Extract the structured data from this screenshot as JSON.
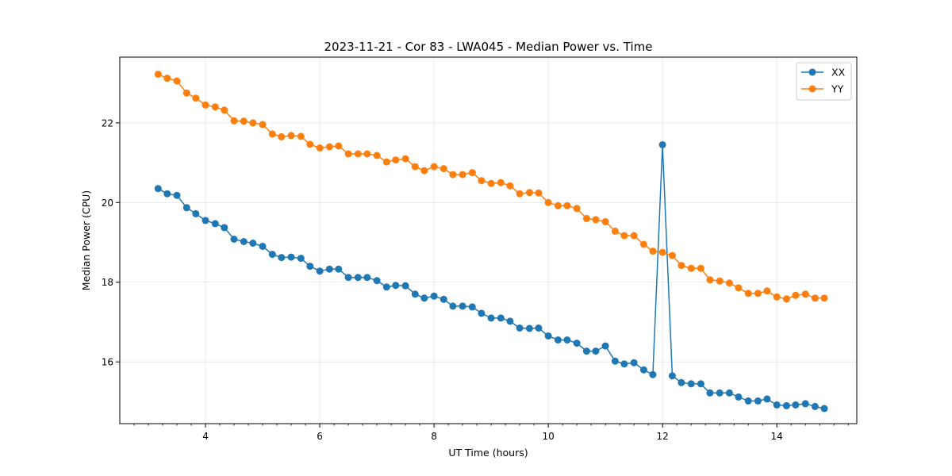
{
  "chart_data": {
    "type": "line",
    "title": "2023-11-21 - Cor 83 - LWA045 - Median Power vs. Time",
    "xlabel": "UT Time (hours)",
    "ylabel": "Median Power (CPU)",
    "xlim": [
      2.5,
      15.4
    ],
    "ylim": [
      14.45,
      23.65
    ],
    "xticks": [
      4,
      6,
      8,
      10,
      12,
      14
    ],
    "yticks": [
      16,
      18,
      20,
      22
    ],
    "grid": true,
    "legend_position": "top-right",
    "x": [
      3.17,
      3.33,
      3.5,
      3.67,
      3.83,
      4.0,
      4.17,
      4.33,
      4.5,
      4.67,
      4.83,
      5.0,
      5.17,
      5.33,
      5.5,
      5.67,
      5.83,
      6.0,
      6.17,
      6.33,
      6.5,
      6.67,
      6.83,
      7.0,
      7.17,
      7.33,
      7.5,
      7.67,
      7.83,
      8.0,
      8.17,
      8.33,
      8.5,
      8.67,
      8.83,
      9.0,
      9.17,
      9.33,
      9.5,
      9.67,
      9.83,
      10.0,
      10.17,
      10.33,
      10.5,
      10.67,
      10.83,
      11.0,
      11.17,
      11.33,
      11.5,
      11.67,
      11.83,
      12.0,
      12.17,
      12.33,
      12.5,
      12.67,
      12.83,
      13.0,
      13.17,
      13.33,
      13.5,
      13.67,
      13.83,
      14.0,
      14.17,
      14.33,
      14.5,
      14.67,
      14.83
    ],
    "series": [
      {
        "name": "XX",
        "color": "#1f77b4",
        "values": [
          20.35,
          20.22,
          20.18,
          19.87,
          19.72,
          19.55,
          19.47,
          19.37,
          19.08,
          19.02,
          18.98,
          18.9,
          18.7,
          18.62,
          18.63,
          18.6,
          18.4,
          18.28,
          18.33,
          18.33,
          18.12,
          18.12,
          18.12,
          18.04,
          17.88,
          17.92,
          17.91,
          17.7,
          17.6,
          17.65,
          17.57,
          17.4,
          17.4,
          17.38,
          17.22,
          17.1,
          17.1,
          17.02,
          16.85,
          16.84,
          16.85,
          16.65,
          16.55,
          16.55,
          16.47,
          16.27,
          16.27,
          16.4,
          16.02,
          15.95,
          15.98,
          15.8,
          15.68,
          21.45,
          15.65,
          15.48,
          15.45,
          15.45,
          15.22,
          15.22,
          15.22,
          15.12,
          15.02,
          15.02,
          15.07,
          14.92,
          14.9,
          14.92,
          14.95,
          14.88,
          14.83
        ]
      },
      {
        "name": "YY",
        "color": "#ff7f0e",
        "values": [
          23.22,
          23.12,
          23.05,
          22.75,
          22.62,
          22.45,
          22.4,
          22.32,
          22.05,
          22.04,
          22.0,
          21.96,
          21.72,
          21.65,
          21.68,
          21.66,
          21.46,
          21.37,
          21.4,
          21.42,
          21.22,
          21.22,
          21.22,
          21.18,
          21.02,
          21.07,
          21.1,
          20.9,
          20.8,
          20.9,
          20.85,
          20.7,
          20.7,
          20.75,
          20.55,
          20.48,
          20.5,
          20.42,
          20.22,
          20.25,
          20.24,
          20.0,
          19.92,
          19.92,
          19.85,
          19.6,
          19.57,
          19.52,
          19.28,
          19.17,
          19.17,
          18.95,
          18.78,
          18.75,
          18.67,
          18.42,
          18.35,
          18.35,
          18.06,
          18.03,
          17.98,
          17.86,
          17.72,
          17.72,
          17.78,
          17.63,
          17.58,
          17.67,
          17.7,
          17.6,
          17.6
        ]
      }
    ]
  }
}
